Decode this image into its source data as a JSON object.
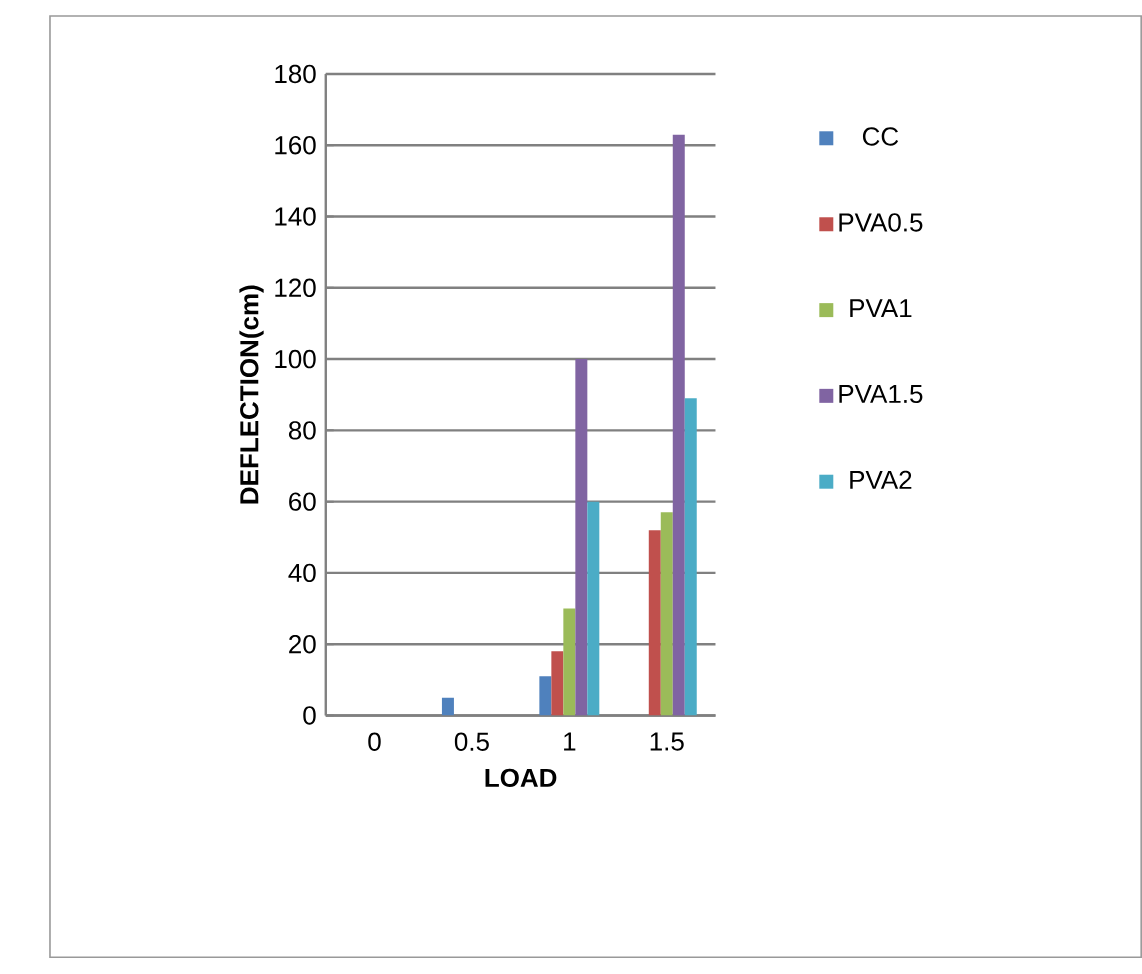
{
  "chart_data": {
    "type": "bar",
    "xlabel": "LOAD",
    "ylabel": "DEFLECTION(cm)",
    "categories": [
      "0",
      "0.5",
      "1",
      "1.5"
    ],
    "series": [
      {
        "name": "CC",
        "color": "#4f81bd",
        "values": [
          0,
          5,
          11,
          0
        ]
      },
      {
        "name": "PVA0.5",
        "color": "#c0504d",
        "values": [
          0,
          0,
          18,
          52
        ]
      },
      {
        "name": "PVA1",
        "color": "#9bbb59",
        "values": [
          0,
          0,
          30,
          57
        ]
      },
      {
        "name": "PVA1.5",
        "color": "#8064a2",
        "values": [
          0,
          0,
          100,
          163
        ]
      },
      {
        "name": "PVA2",
        "color": "#4bacc6",
        "values": [
          0,
          0,
          60,
          89
        ]
      }
    ],
    "ylim": [
      0,
      180
    ],
    "yticks": [
      0,
      20,
      40,
      60,
      80,
      100,
      120,
      140,
      160,
      180
    ],
    "grid": "y",
    "legend": "right"
  }
}
